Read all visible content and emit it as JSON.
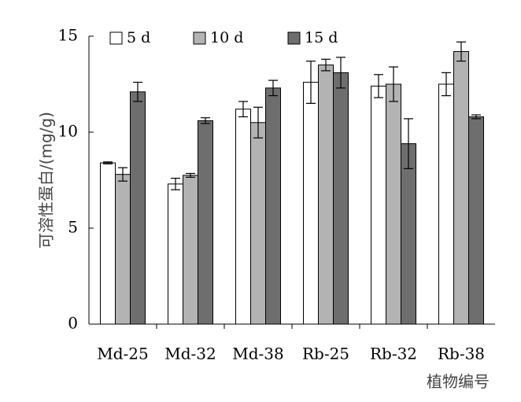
{
  "chart_data": {
    "type": "bar",
    "title": "",
    "xlabel": "植物编号",
    "ylabel": "可溶性蛋白/(mg/g)",
    "ylim": [
      0,
      15
    ],
    "yticks": [
      "0",
      "5",
      "10",
      "15"
    ],
    "grid": false,
    "legend_position": "top-left",
    "categories": [
      "Md-25",
      "Md-32",
      "Md-38",
      "Rb-25",
      "Rb-32",
      "Rb-38"
    ],
    "series": [
      {
        "name": "5 d",
        "color": "#ffffff",
        "values": [
          8.4,
          7.3,
          11.2,
          12.6,
          12.4,
          12.5
        ],
        "errors": [
          0.05,
          0.3,
          0.4,
          1.1,
          0.6,
          0.6
        ]
      },
      {
        "name": "10 d",
        "color": "#b3b3b3",
        "values": [
          7.8,
          7.75,
          10.5,
          13.5,
          12.5,
          14.2
        ],
        "errors": [
          0.35,
          0.1,
          0.8,
          0.3,
          0.9,
          0.5
        ]
      },
      {
        "name": "15 d",
        "color": "#6e6e6e",
        "values": [
          12.1,
          10.6,
          12.3,
          13.1,
          9.4,
          10.8
        ],
        "errors": [
          0.5,
          0.15,
          0.4,
          0.8,
          1.3,
          0.1
        ]
      }
    ]
  }
}
